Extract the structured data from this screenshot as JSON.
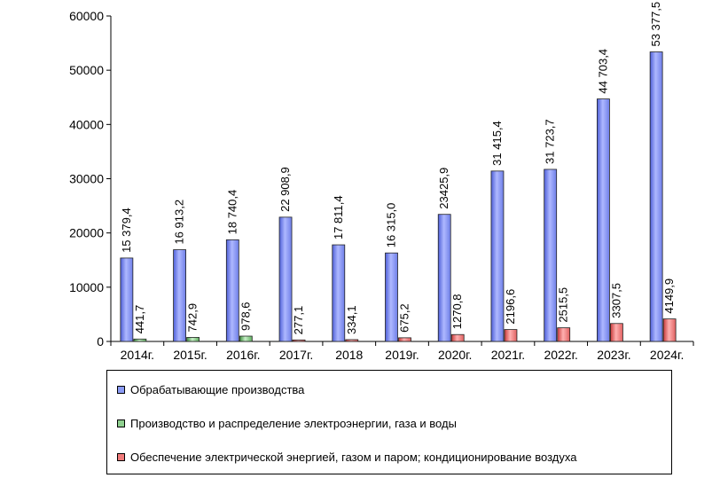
{
  "chart_data": {
    "type": "bar",
    "categories": [
      "2014г.",
      "2015г.",
      "2016г.",
      "2017г.",
      "2018",
      "2019г.",
      "2020г.",
      "2021г.",
      "2022г.",
      "2023г.",
      "2024г."
    ],
    "ylim": [
      0,
      60000
    ],
    "yticks": [
      "0",
      "10000",
      "20000",
      "30000",
      "40000",
      "50000",
      "60000"
    ],
    "ytick_values": [
      0,
      10000,
      20000,
      30000,
      40000,
      50000,
      60000
    ],
    "grid": false,
    "legend_position": "bottom",
    "series": [
      {
        "name": "Обрабатывающие производства",
        "color": "#8B9BF5",
        "values": [
          15379.4,
          16913.2,
          18740.4,
          22908.9,
          17811.4,
          16315.0,
          23425.9,
          31415.4,
          31723.7,
          44703.4,
          53377.5
        ],
        "labels": [
          "15 379,4",
          "16 913,2",
          "18 740,4",
          "22 908,9",
          "17 811,4",
          "16 315,0",
          "23425,9",
          "31 415,4",
          "31 723,7",
          "44 703,4",
          "53 377,5"
        ]
      },
      {
        "name": "Производство и распределение электроэнергии, газа и воды",
        "color": "#8FD08F",
        "values": [
          441.7,
          742.9,
          978.6,
          null,
          null,
          null,
          null,
          null,
          null,
          null,
          null
        ],
        "labels": [
          "441,7",
          "742,9",
          "978,6",
          "",
          "",
          "",
          "",
          "",
          "",
          "",
          ""
        ]
      },
      {
        "name": "Обеспечение электрической энергией, газом и паром; кондиционирование воздуха",
        "color": "#F07A7A",
        "values": [
          null,
          null,
          null,
          277.1,
          334.1,
          675.2,
          1270.8,
          2196.6,
          2515.5,
          3307.5,
          4149.9
        ],
        "labels": [
          "",
          "",
          "",
          "277,1",
          "334,1",
          "675,2",
          "1270,8",
          "2196,6",
          "2515,5",
          "3307,5",
          "4149,9"
        ]
      }
    ]
  }
}
